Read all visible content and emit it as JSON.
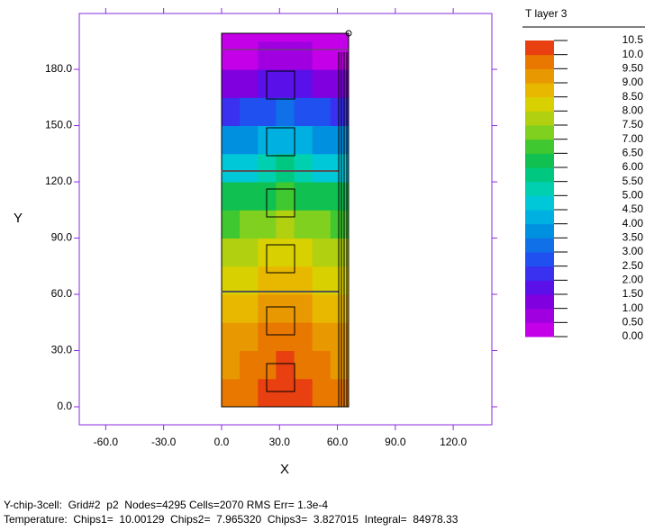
{
  "chart_data": {
    "type": "heatmap",
    "xlabel": "X",
    "ylabel": "Y",
    "legend_title": "T layer 3",
    "xlim": [
      -73.7,
      140
    ],
    "ylim": [
      -9.6,
      209.8
    ],
    "xticks": [
      {
        "value": -60,
        "label": "-60.0"
      },
      {
        "value": -30,
        "label": "-30.0"
      },
      {
        "value": 0,
        "label": "0.0"
      },
      {
        "value": 30,
        "label": "30.0"
      },
      {
        "value": 60,
        "label": "60.0"
      },
      {
        "value": 90,
        "label": "90.0"
      },
      {
        "value": 120,
        "label": "120.0"
      }
    ],
    "yticks": [
      {
        "value": 0,
        "label": "0.0"
      },
      {
        "value": 30,
        "label": "30.0"
      },
      {
        "value": 60,
        "label": "60.0"
      },
      {
        "value": 90,
        "label": "90.0"
      },
      {
        "value": 120,
        "label": "120.0"
      },
      {
        "value": 150,
        "label": "150.0"
      },
      {
        "value": 180,
        "label": "180.0"
      }
    ],
    "xbins": [
      0,
      9.4,
      18.8,
      28.2,
      37.6,
      47,
      56.4,
      65.8
    ],
    "ybins": [
      0,
      15,
      30,
      45,
      60,
      75,
      90,
      105,
      120,
      135,
      150,
      165,
      180,
      195,
      199
    ],
    "values": [
      [
        9.6,
        9.8,
        10.1,
        10.3,
        10.1,
        9.8,
        9.6
      ],
      [
        9.4,
        9.6,
        9.9,
        10.2,
        9.9,
        9.6,
        9.4
      ],
      [
        9.1,
        9.3,
        9.6,
        9.9,
        9.6,
        9.3,
        9.1
      ],
      [
        8.8,
        8.9,
        9.1,
        9.4,
        9.1,
        8.9,
        8.8
      ],
      [
        8.2,
        8.3,
        8.6,
        8.9,
        8.6,
        8.3,
        8.2
      ],
      [
        7.6,
        7.7,
        8.0,
        8.3,
        8.0,
        7.7,
        7.6
      ],
      [
        6.9,
        7.0,
        7.3,
        7.6,
        7.3,
        7.0,
        6.9
      ],
      [
        6.0,
        6.1,
        6.4,
        6.8,
        6.4,
        6.1,
        6.0
      ],
      [
        4.7,
        4.8,
        5.2,
        5.6,
        5.2,
        4.8,
        4.7
      ],
      [
        3.6,
        3.7,
        4.0,
        4.3,
        4.0,
        3.7,
        3.6
      ],
      [
        2.4,
        2.5,
        2.8,
        3.1,
        2.8,
        2.5,
        2.4
      ],
      [
        1.2,
        1.3,
        1.6,
        1.9,
        1.6,
        1.3,
        1.2
      ],
      [
        0.3,
        0.3,
        0.5,
        0.7,
        0.5,
        0.3,
        0.3
      ],
      [
        0.1,
        0.1,
        0.1,
        0.1,
        0.1,
        0.1,
        0.1
      ]
    ],
    "levels": [
      {
        "value": 0,
        "label": "0.00"
      },
      {
        "value": 0.5,
        "label": "0.50"
      },
      {
        "value": 1,
        "label": "1.00"
      },
      {
        "value": 1.5,
        "label": "1.50"
      },
      {
        "value": 2,
        "label": "2.00"
      },
      {
        "value": 2.5,
        "label": "2.50"
      },
      {
        "value": 3,
        "label": "3.00"
      },
      {
        "value": 3.5,
        "label": "3.50"
      },
      {
        "value": 4,
        "label": "4.00"
      },
      {
        "value": 4.5,
        "label": "4.50"
      },
      {
        "value": 5,
        "label": "5.00"
      },
      {
        "value": 5.5,
        "label": "5.50"
      },
      {
        "value": 6,
        "label": "6.00"
      },
      {
        "value": 6.5,
        "label": "6.50"
      },
      {
        "value": 7,
        "label": "7.00"
      },
      {
        "value": 7.5,
        "label": "7.50"
      },
      {
        "value": 8,
        "label": "8.00"
      },
      {
        "value": 8.5,
        "label": "8.50"
      },
      {
        "value": 9,
        "label": "9.00"
      },
      {
        "value": 9.5,
        "label": "9.50"
      },
      {
        "value": 10,
        "label": "10.0"
      },
      {
        "value": 10.5,
        "label": "10.5"
      }
    ],
    "colors": [
      "#c400e8",
      "#a000e0",
      "#8000e0",
      "#5a10e8",
      "#3a30f0",
      "#2050f0",
      "#1070e8",
      "#0090e0",
      "#00b0e0",
      "#00c8d8",
      "#00d0b0",
      "#00c880",
      "#10c050",
      "#40c830",
      "#80d020",
      "#b0d010",
      "#d8d000",
      "#e8b800",
      "#e89800",
      "#e87800",
      "#e84010"
    ],
    "footer": [
      "Y-chip-3cell:  Grid#2  p2  Nodes=4295 Cells=2070 RMS Err= 1.3e-4",
      "Temperature:  Chips1=  10.00129  Chips2=  7.965320  Chips3=  3.827015  Integral=  84978.33"
    ]
  }
}
